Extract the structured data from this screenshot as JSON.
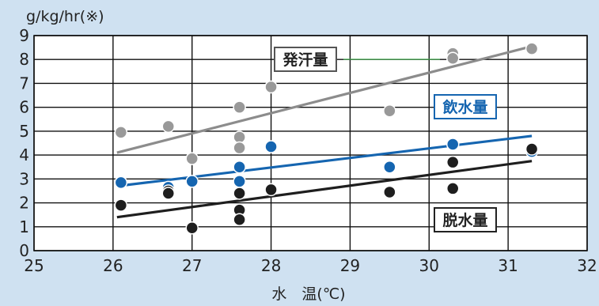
{
  "chart_data": {
    "type": "scatter",
    "ylabel": "g/kg/hr(※)",
    "xlabel": "水　温(℃)",
    "xlim": [
      25,
      32
    ],
    "ylim": [
      0,
      9
    ],
    "xticks": [
      "25",
      "26",
      "27",
      "28",
      "29",
      "30",
      "31",
      "32"
    ],
    "yticks": [
      "0",
      "1",
      "2",
      "3",
      "4",
      "5",
      "6",
      "7",
      "8",
      "9"
    ],
    "grid": true,
    "series": [
      {
        "name": "発汗量",
        "color": "#999999",
        "line_color": "#8c8c8c",
        "points": [
          [
            26.1,
            4.95
          ],
          [
            26.7,
            5.2
          ],
          [
            27.0,
            3.85
          ],
          [
            27.6,
            6.0
          ],
          [
            27.6,
            4.75
          ],
          [
            27.6,
            4.3
          ],
          [
            28.0,
            6.85
          ],
          [
            29.5,
            5.85
          ],
          [
            30.3,
            8.25
          ],
          [
            30.3,
            8.05
          ],
          [
            31.3,
            8.45
          ]
        ],
        "trend": [
          [
            26.05,
            4.1
          ],
          [
            31.3,
            8.55
          ]
        ]
      },
      {
        "name": "飲水量",
        "color": "#1565b0",
        "line_color": "#1565b0",
        "points": [
          [
            26.1,
            2.85
          ],
          [
            26.7,
            2.65
          ],
          [
            27.0,
            2.9
          ],
          [
            27.6,
            3.5
          ],
          [
            27.6,
            2.9
          ],
          [
            28.0,
            4.35
          ],
          [
            29.5,
            3.5
          ],
          [
            30.3,
            4.45
          ],
          [
            31.3,
            4.15
          ]
        ],
        "trend": [
          [
            26.05,
            2.7
          ],
          [
            31.3,
            4.8
          ]
        ]
      },
      {
        "name": "脱水量",
        "color": "#1e1e1e",
        "line_color": "#1e1e1e",
        "points": [
          [
            26.1,
            1.9
          ],
          [
            26.7,
            2.5
          ],
          [
            26.7,
            2.4
          ],
          [
            27.0,
            0.95
          ],
          [
            27.6,
            2.4
          ],
          [
            27.6,
            1.7
          ],
          [
            27.6,
            1.3
          ],
          [
            28.0,
            2.55
          ],
          [
            29.5,
            2.45
          ],
          [
            30.3,
            3.7
          ],
          [
            30.3,
            2.6
          ],
          [
            31.3,
            4.25
          ]
        ],
        "trend": [
          [
            26.05,
            1.4
          ],
          [
            31.3,
            3.75
          ]
        ]
      }
    ],
    "annotations": [
      {
        "text": "発汗量",
        "color": "#222222",
        "border": "#555555"
      },
      {
        "text": "飲水量",
        "color": "#1565b0",
        "border": "#1565b0"
      },
      {
        "text": "脱水量",
        "color": "#222222",
        "border": "#222222"
      }
    ]
  }
}
